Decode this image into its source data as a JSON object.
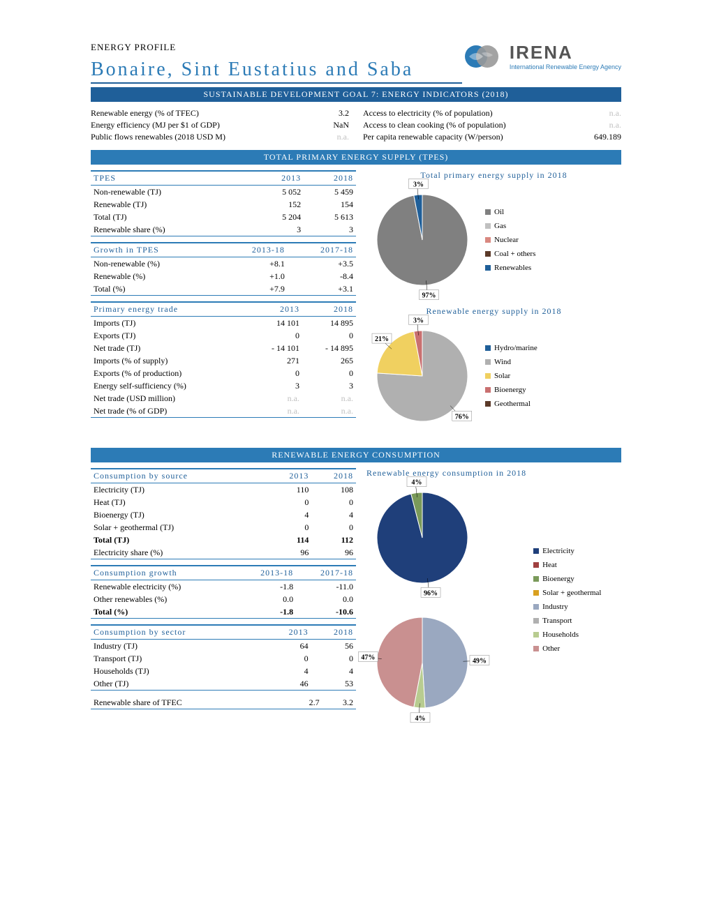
{
  "header": {
    "profile_label": "ENERGY PROFILE",
    "country": "Bonaire, Sint Eustatius and Saba",
    "logo_main": "IRENA",
    "logo_sub": "International Renewable Energy Agency"
  },
  "sdg": {
    "title": "SUSTAINABLE DEVELOPMENT GOAL 7: ENERGY INDICATORS (2018)",
    "left": [
      {
        "label": "Renewable energy (% of TFEC)",
        "value": "3.2"
      },
      {
        "label": "Energy efficiency (MJ per $1 of GDP)",
        "value": "NaN"
      },
      {
        "label": "Public flows renewables (2018 USD M)",
        "value": "n.a.",
        "na": true
      }
    ],
    "right": [
      {
        "label": "Access to electricity (% of population)",
        "value": "n.a.",
        "na": true
      },
      {
        "label": "Access to clean cooking (% of population)",
        "value": "n.a.",
        "na": true
      },
      {
        "label": "Per capita renewable capacity (W/person)",
        "value": "649.189"
      }
    ]
  },
  "tpes": {
    "title": "TOTAL PRIMARY ENERGY SUPPLY (TPES)",
    "tables": [
      {
        "header": [
          "TPES",
          "2013",
          "2018"
        ],
        "rows": [
          {
            "c": [
              "Non-renewable (TJ)",
              "5 052",
              "5 459"
            ]
          },
          {
            "c": [
              "Renewable (TJ)",
              "152",
              "154"
            ]
          },
          {
            "c": [
              "Total (TJ)",
              "5 204",
              "5 613"
            ]
          },
          {
            "c": [
              "Renewable share (%)",
              "3",
              "3"
            ],
            "end": true
          }
        ]
      },
      {
        "header": [
          "Growth in TPES",
          "2013-18",
          "2017-18"
        ],
        "rows": [
          {
            "c": [
              "Non-renewable (%)",
              "+8.1",
              "+3.5"
            ]
          },
          {
            "c": [
              "Renewable (%)",
              "+1.0",
              "-8.4"
            ]
          },
          {
            "c": [
              "Total (%)",
              "+7.9",
              "+3.1"
            ],
            "end": true
          }
        ]
      },
      {
        "header": [
          "Primary energy trade",
          "2013",
          "2018"
        ],
        "rows": [
          {
            "c": [
              "Imports (TJ)",
              "14 101",
              "14 895"
            ]
          },
          {
            "c": [
              "Exports (TJ)",
              "0",
              "0"
            ]
          },
          {
            "c": [
              "Net trade (TJ)",
              "- 14 101",
              "- 14 895"
            ]
          },
          {
            "c": [
              "Imports (% of supply)",
              "271",
              "265"
            ]
          },
          {
            "c": [
              "Exports (% of production)",
              "0",
              "0"
            ]
          },
          {
            "c": [
              "Energy self-sufficiency (%)",
              "3",
              "3"
            ]
          },
          {
            "c": [
              "Net trade (USD million)",
              "n.a.",
              "n.a."
            ],
            "na": true
          },
          {
            "c": [
              "Net trade (% of GDP)",
              "n.a.",
              "n.a."
            ],
            "na": true,
            "end": true
          }
        ]
      }
    ],
    "charts": [
      {
        "title": "Total primary energy supply in 2018",
        "slices": [
          {
            "label": "Oil",
            "value": 97,
            "color": "#808080",
            "show": "97%"
          },
          {
            "label": "Gas",
            "value": 0,
            "color": "#c0c0c0"
          },
          {
            "label": "Nuclear",
            "value": 0,
            "color": "#d98880"
          },
          {
            "label": "Coal + others",
            "value": 0,
            "color": "#5b3a29"
          },
          {
            "label": "Renewables",
            "value": 3,
            "color": "#1f5f99",
            "show": "3%"
          }
        ]
      },
      {
        "title": "Renewable energy supply in 2018",
        "slices": [
          {
            "label": "Hydro/marine",
            "value": 0,
            "color": "#1f5f99"
          },
          {
            "label": "Wind",
            "value": 76,
            "color": "#b0b0b0",
            "show": "76%"
          },
          {
            "label": "Solar",
            "value": 21,
            "color": "#f0d060",
            "show": "21%"
          },
          {
            "label": "Bioenergy",
            "value": 3,
            "color": "#c97070",
            "show": "3%"
          },
          {
            "label": "Geothermal",
            "value": 0,
            "color": "#5b3a29"
          }
        ]
      }
    ]
  },
  "rec": {
    "title": "RENEWABLE ENERGY CONSUMPTION",
    "tables": [
      {
        "header": [
          "Consumption by source",
          "2013",
          "2018"
        ],
        "rows": [
          {
            "c": [
              "Electricity (TJ)",
              "110",
              "108"
            ]
          },
          {
            "c": [
              "Heat (TJ)",
              "0",
              "0"
            ]
          },
          {
            "c": [
              "Bioenergy (TJ)",
              "4",
              "4"
            ]
          },
          {
            "c": [
              "Solar + geothermal (TJ)",
              "0",
              "0"
            ]
          },
          {
            "c": [
              "Total (TJ)",
              "114",
              "112"
            ],
            "bold": true
          },
          {
            "c": [
              "Electricity share (%)",
              "96",
              "96"
            ],
            "end": true
          }
        ]
      },
      {
        "header": [
          "Consumption growth",
          "2013-18",
          "2017-18"
        ],
        "rows": [
          {
            "c": [
              "Renewable electricity (%)",
              "-1.8",
              "-11.0"
            ]
          },
          {
            "c": [
              "Other renewables (%)",
              "0.0",
              "0.0"
            ]
          },
          {
            "c": [
              "Total (%)",
              "-1.8",
              "-10.6"
            ],
            "bold": true,
            "end": true
          }
        ]
      },
      {
        "header": [
          "Consumption by sector",
          "2013",
          "2018"
        ],
        "rows": [
          {
            "c": [
              "Industry (TJ)",
              "64",
              "56"
            ]
          },
          {
            "c": [
              "Transport (TJ)",
              "0",
              "0"
            ]
          },
          {
            "c": [
              "Households (TJ)",
              "4",
              "4"
            ]
          },
          {
            "c": [
              "Other (TJ)",
              "46",
              "53"
            ],
            "end": true
          }
        ]
      },
      {
        "header": null,
        "rows": [
          {
            "c": [
              "Renewable share of TFEC",
              "2.7",
              "3.2"
            ],
            "end": true
          }
        ]
      }
    ],
    "charts": [
      {
        "title": "Renewable energy consumption in 2018",
        "slices": [
          {
            "label": "Electricity",
            "value": 96,
            "color": "#1f3f7a",
            "show": "96%"
          },
          {
            "label": "Heat",
            "value": 0,
            "color": "#a04040"
          },
          {
            "label": "Bioenergy",
            "value": 4,
            "color": "#7a9a5a",
            "show": "4%"
          },
          {
            "label": "Solar + geothermal",
            "value": 0,
            "color": "#d9a020"
          }
        ]
      },
      {
        "title": "",
        "slices": [
          {
            "label": "Industry",
            "value": 49,
            "color": "#9aa8c0",
            "show": "49%"
          },
          {
            "label": "Transport",
            "value": 0,
            "color": "#b0b0b0"
          },
          {
            "label": "Households",
            "value": 4,
            "color": "#b8cc90",
            "show": "4%"
          },
          {
            "label": "Other",
            "value": 47,
            "color": "#c99090",
            "show": "47%"
          }
        ]
      }
    ],
    "legend_combined": [
      {
        "label": "Electricity",
        "color": "#1f3f7a"
      },
      {
        "label": "Heat",
        "color": "#a04040"
      },
      {
        "label": "Bioenergy",
        "color": "#7a9a5a"
      },
      {
        "label": "Solar + geothermal",
        "color": "#d9a020"
      },
      {
        "label": "Industry",
        "color": "#9aa8c0"
      },
      {
        "label": "Transport",
        "color": "#b0b0b0"
      },
      {
        "label": "Households",
        "color": "#b8cc90"
      },
      {
        "label": "Other",
        "color": "#c99090"
      }
    ]
  }
}
